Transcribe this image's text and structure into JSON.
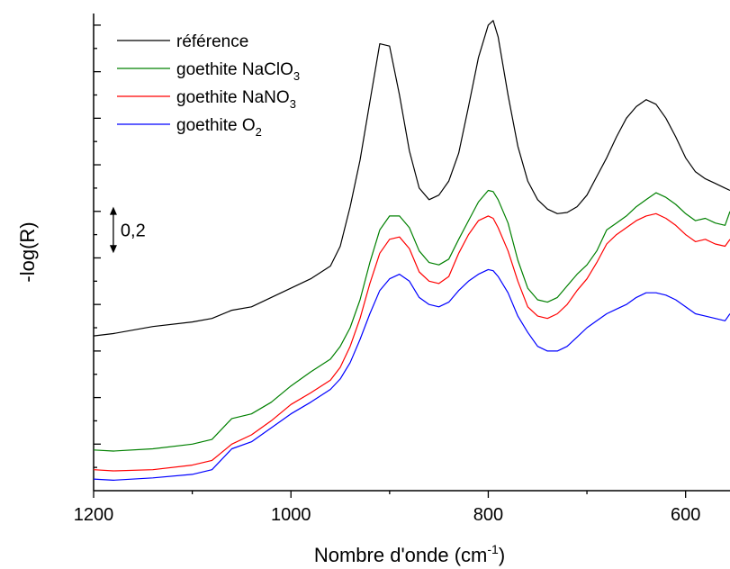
{
  "chart_data": {
    "type": "line",
    "title": "",
    "xlabel": {
      "main": "Nombre d'onde (cm",
      "sup": "-1",
      "tail": ")"
    },
    "ylabel": "-log(R)",
    "x_reversed": true,
    "xlim": [
      1200,
      555
    ],
    "ylim": [
      0,
      2.05
    ],
    "x_ticks": [
      1200,
      1000,
      800,
      600
    ],
    "x_tick_labels": [
      "1200",
      "1000",
      "800",
      "600"
    ],
    "y_tick_labels_shown": false,
    "grid": false,
    "legend_position": "top-left",
    "annotation": {
      "label": "0,2",
      "arrow_length": 0.2,
      "arrow_from": 1.02,
      "arrow_to": 1.22,
      "x": 1180
    },
    "series": [
      {
        "legend": {
          "main": "référence",
          "sub": ""
        },
        "color": "#000000",
        "x": [
          1200,
          1180,
          1140,
          1100,
          1080,
          1060,
          1040,
          1020,
          1000,
          980,
          960,
          950,
          940,
          930,
          920,
          910,
          900,
          890,
          880,
          870,
          860,
          850,
          840,
          830,
          820,
          810,
          800,
          795,
          790,
          780,
          770,
          760,
          750,
          740,
          730,
          720,
          710,
          700,
          690,
          680,
          670,
          660,
          650,
          640,
          630,
          620,
          610,
          600,
          590,
          580,
          570,
          560,
          555
        ],
        "y": [
          0.665,
          0.675,
          0.705,
          0.725,
          0.74,
          0.775,
          0.79,
          0.83,
          0.87,
          0.91,
          0.965,
          1.05,
          1.22,
          1.42,
          1.67,
          1.92,
          1.91,
          1.7,
          1.46,
          1.3,
          1.25,
          1.27,
          1.33,
          1.45,
          1.65,
          1.86,
          2.0,
          2.02,
          1.95,
          1.7,
          1.48,
          1.33,
          1.25,
          1.21,
          1.19,
          1.195,
          1.22,
          1.27,
          1.35,
          1.43,
          1.52,
          1.6,
          1.65,
          1.68,
          1.66,
          1.6,
          1.52,
          1.43,
          1.37,
          1.34,
          1.32,
          1.3,
          1.29
        ]
      },
      {
        "legend": {
          "main": "goethite NaClO",
          "sub": "3"
        },
        "color": "#008000",
        "x": [
          1200,
          1180,
          1140,
          1100,
          1080,
          1060,
          1040,
          1020,
          1000,
          980,
          960,
          950,
          940,
          930,
          920,
          910,
          900,
          890,
          880,
          870,
          860,
          850,
          840,
          830,
          820,
          810,
          800,
          795,
          790,
          780,
          770,
          760,
          750,
          740,
          730,
          720,
          710,
          700,
          690,
          680,
          670,
          660,
          650,
          640,
          630,
          620,
          610,
          600,
          590,
          580,
          570,
          560,
          555
        ],
        "y": [
          0.175,
          0.17,
          0.18,
          0.2,
          0.22,
          0.31,
          0.33,
          0.38,
          0.45,
          0.51,
          0.565,
          0.62,
          0.7,
          0.82,
          0.98,
          1.12,
          1.18,
          1.18,
          1.13,
          1.03,
          0.98,
          0.97,
          0.995,
          1.08,
          1.16,
          1.24,
          1.29,
          1.285,
          1.25,
          1.15,
          0.99,
          0.87,
          0.82,
          0.81,
          0.83,
          0.88,
          0.93,
          0.97,
          1.03,
          1.12,
          1.15,
          1.18,
          1.22,
          1.25,
          1.28,
          1.26,
          1.23,
          1.19,
          1.16,
          1.17,
          1.15,
          1.14,
          1.2
        ]
      },
      {
        "legend": {
          "main": "goethite NaNO",
          "sub": "3"
        },
        "color": "#ff0000",
        "x": [
          1200,
          1180,
          1140,
          1100,
          1080,
          1060,
          1040,
          1020,
          1000,
          980,
          960,
          950,
          940,
          930,
          920,
          910,
          900,
          890,
          880,
          870,
          860,
          850,
          840,
          830,
          820,
          810,
          800,
          795,
          790,
          780,
          770,
          760,
          750,
          740,
          730,
          720,
          710,
          700,
          690,
          680,
          670,
          660,
          650,
          640,
          630,
          620,
          610,
          600,
          590,
          580,
          570,
          560,
          555
        ],
        "y": [
          0.09,
          0.085,
          0.09,
          0.11,
          0.13,
          0.2,
          0.24,
          0.3,
          0.37,
          0.42,
          0.475,
          0.53,
          0.62,
          0.74,
          0.89,
          1.02,
          1.08,
          1.09,
          1.04,
          0.94,
          0.9,
          0.89,
          0.92,
          1.02,
          1.1,
          1.16,
          1.18,
          1.17,
          1.13,
          1.03,
          0.9,
          0.79,
          0.75,
          0.74,
          0.76,
          0.8,
          0.86,
          0.91,
          0.98,
          1.06,
          1.1,
          1.13,
          1.16,
          1.18,
          1.19,
          1.17,
          1.14,
          1.1,
          1.07,
          1.08,
          1.06,
          1.05,
          1.08
        ]
      },
      {
        "legend": {
          "main": "goethite O",
          "sub": "2"
        },
        "color": "#0000ff",
        "x": [
          1200,
          1180,
          1140,
          1100,
          1080,
          1060,
          1040,
          1020,
          1000,
          980,
          960,
          950,
          940,
          930,
          920,
          910,
          900,
          890,
          880,
          870,
          860,
          850,
          840,
          830,
          820,
          810,
          800,
          795,
          790,
          780,
          770,
          760,
          750,
          740,
          730,
          720,
          710,
          700,
          690,
          680,
          670,
          660,
          650,
          640,
          630,
          620,
          610,
          600,
          590,
          580,
          570,
          560,
          555
        ],
        "y": [
          0.05,
          0.045,
          0.055,
          0.07,
          0.09,
          0.18,
          0.21,
          0.27,
          0.33,
          0.38,
          0.435,
          0.48,
          0.55,
          0.65,
          0.76,
          0.86,
          0.91,
          0.93,
          0.9,
          0.83,
          0.8,
          0.79,
          0.81,
          0.86,
          0.9,
          0.93,
          0.95,
          0.945,
          0.92,
          0.85,
          0.75,
          0.68,
          0.62,
          0.6,
          0.6,
          0.62,
          0.66,
          0.7,
          0.73,
          0.76,
          0.78,
          0.8,
          0.83,
          0.85,
          0.85,
          0.84,
          0.82,
          0.79,
          0.76,
          0.75,
          0.74,
          0.73,
          0.76
        ]
      }
    ]
  }
}
